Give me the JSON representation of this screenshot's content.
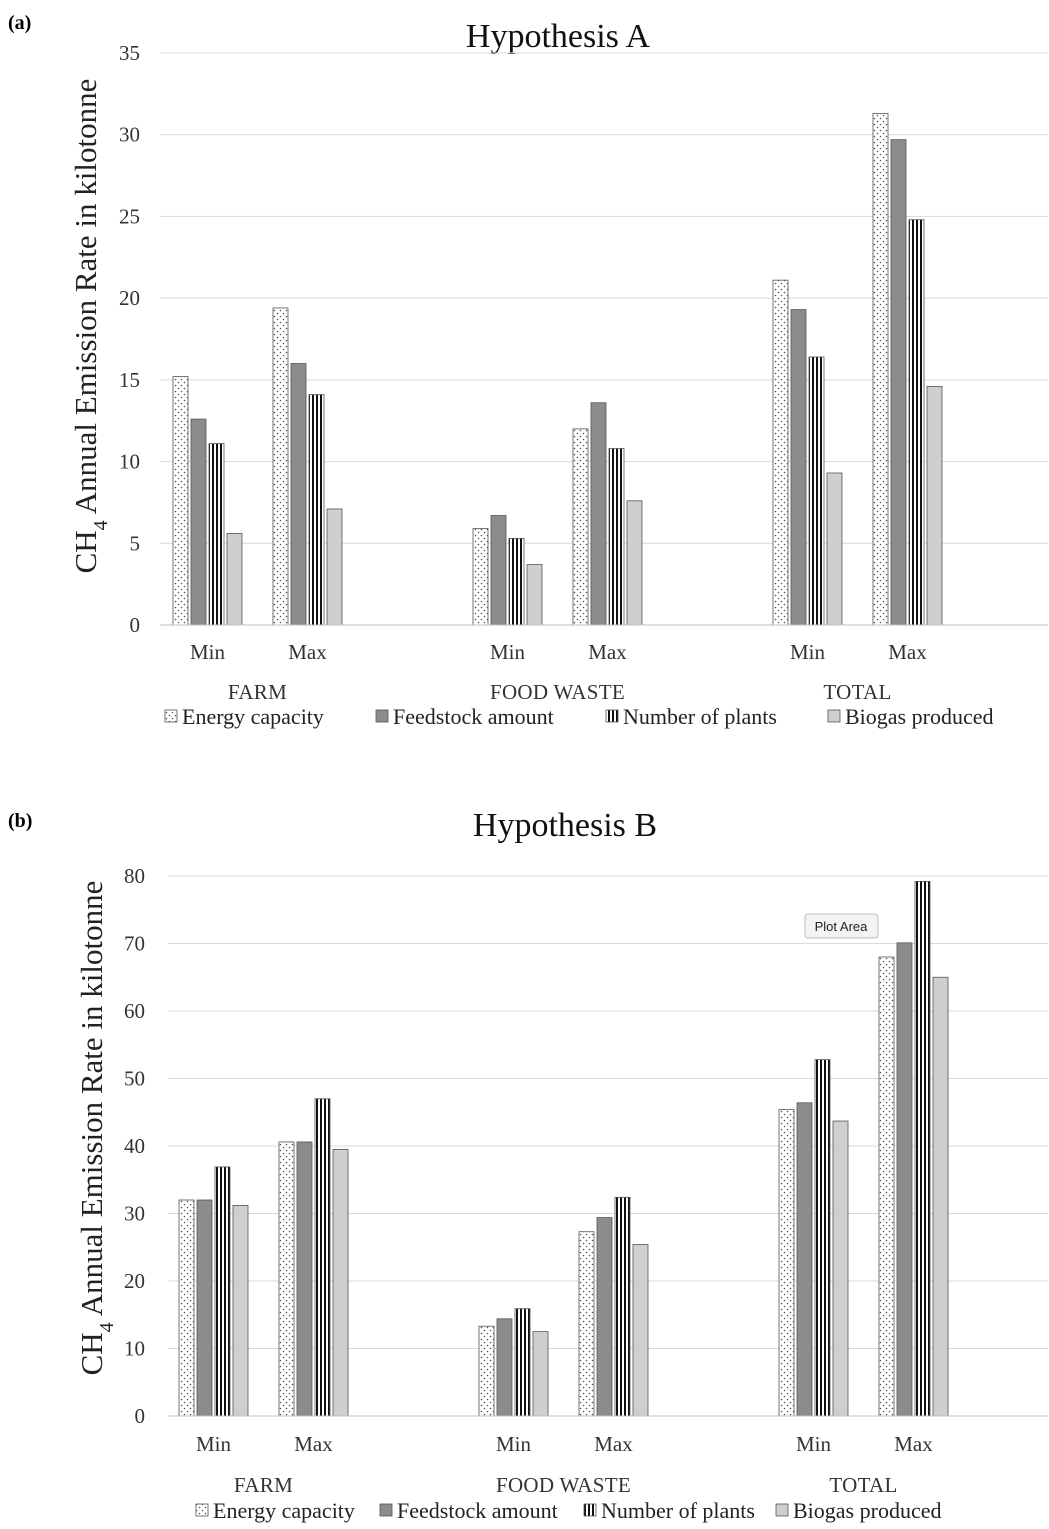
{
  "chart_data": [
    {
      "panel_label": "(a)",
      "type": "bar",
      "title": "Hypothesis A",
      "ylabel": "CH4 Annual Emission Rate in kilotonne",
      "ylabel_main": "CH",
      "ylabel_sub": "4",
      "ylabel_rest": " Annual Emission Rate in kilotonne",
      "ylim": [
        0,
        35
      ],
      "yticks": [
        0,
        5,
        10,
        15,
        20,
        25,
        30,
        35
      ],
      "grid": true,
      "groups": [
        "FARM",
        "FOOD WASTE",
        "TOTAL"
      ],
      "categories": [
        "Min",
        "Max",
        "Min",
        "Max",
        "Min",
        "Max"
      ],
      "series": [
        {
          "name": "Energy capacity",
          "values": [
            15.2,
            19.4,
            5.9,
            12.0,
            21.1,
            31.3
          ]
        },
        {
          "name": "Feedstock amount",
          "values": [
            12.6,
            16.0,
            6.7,
            13.6,
            19.3,
            29.7
          ]
        },
        {
          "name": "Number of plants",
          "values": [
            11.1,
            14.1,
            5.3,
            10.8,
            16.4,
            24.8
          ]
        },
        {
          "name": "Biogas produced",
          "values": [
            5.6,
            7.1,
            3.7,
            7.6,
            9.3,
            14.6
          ]
        }
      ],
      "legend_position": "bottom"
    },
    {
      "panel_label": "(b)",
      "type": "bar",
      "title": "Hypothesis B",
      "ylabel": "CH4 Annual Emission Rate in kilotonne",
      "ylabel_main": "CH",
      "ylabel_sub": "4",
      "ylabel_rest": " Annual Emission Rate in kilotonne",
      "ylim": [
        0,
        80
      ],
      "yticks": [
        0,
        10,
        20,
        30,
        40,
        50,
        60,
        70,
        80
      ],
      "grid": true,
      "groups": [
        "FARM",
        "FOOD WASTE",
        "TOTAL"
      ],
      "categories": [
        "Min",
        "Max",
        "Min",
        "Max",
        "Min",
        "Max"
      ],
      "series": [
        {
          "name": "Energy capacity",
          "values": [
            32.0,
            40.6,
            13.3,
            27.3,
            45.4,
            68.0
          ]
        },
        {
          "name": "Feedstock amount",
          "values": [
            32.0,
            40.6,
            14.4,
            29.4,
            46.4,
            70.1
          ]
        },
        {
          "name": "Number of plants",
          "values": [
            36.9,
            47.0,
            15.9,
            32.4,
            52.8,
            79.2
          ]
        },
        {
          "name": "Biogas produced",
          "values": [
            31.2,
            39.5,
            12.5,
            25.4,
            43.7,
            65.0
          ]
        }
      ],
      "legend_position": "bottom",
      "tooltip": "Plot Area"
    }
  ],
  "colors": {
    "energy_fill": "#ffffff",
    "energy_dots": "#555555",
    "feedstock_fill": "#8c8c8c",
    "plants_stripe_dark": "#111111",
    "plants_stripe_light": "#ffffff",
    "biogas_fill": "#cfcfcf",
    "gridline": "#d9d9d9",
    "axis": "#bfbfbf"
  }
}
